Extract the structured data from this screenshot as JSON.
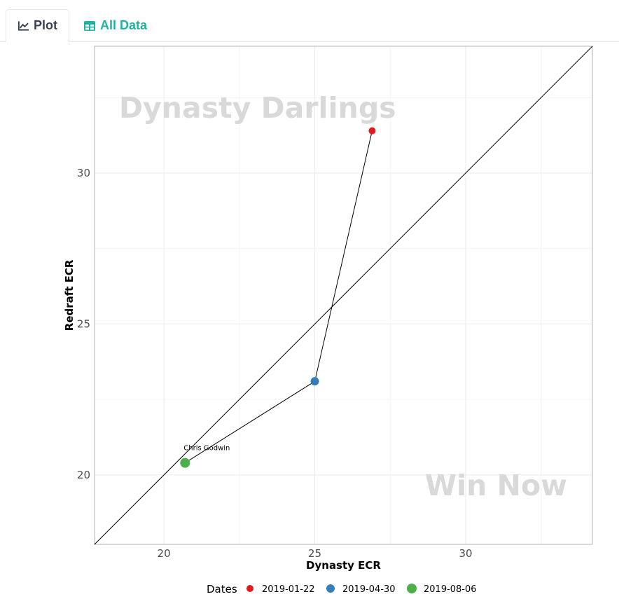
{
  "tabs": [
    {
      "label": "Plot",
      "icon": "line-chart-icon",
      "active": true
    },
    {
      "label": "All Data",
      "icon": "table-icon",
      "active": false
    }
  ],
  "colors": {
    "accent": "#20b2a0",
    "tab_text": "#3a4152"
  },
  "chart_data": {
    "type": "scatter",
    "xlabel": "Dynasty ECR",
    "ylabel": "Redraft ECR",
    "xlim": [
      17.7,
      34.2
    ],
    "ylim": [
      17.7,
      34.2
    ],
    "x_ticks": [
      20,
      25,
      30
    ],
    "y_ticks": [
      20,
      25,
      30
    ],
    "grid": true,
    "reference_line": "y = x",
    "watermarks": {
      "upper_left": "Dynasty Darlings",
      "lower_right": "Win Now"
    },
    "legend": {
      "title": "Dates",
      "placement": "bottom"
    },
    "series": [
      {
        "name": "Chris Godwin",
        "points": [
          {
            "date": "2019-01-22",
            "x": 26.9,
            "y": 31.4,
            "color": "#e41a1c"
          },
          {
            "date": "2019-04-30",
            "x": 25.0,
            "y": 23.1,
            "color": "#377eb8"
          },
          {
            "date": "2019-08-06",
            "x": 20.7,
            "y": 20.4,
            "color": "#4daf4a"
          }
        ]
      }
    ]
  }
}
